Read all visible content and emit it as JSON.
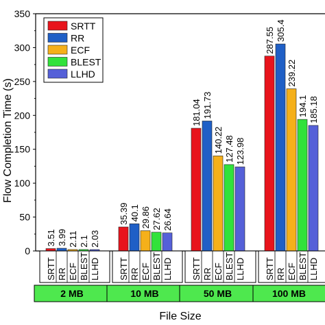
{
  "chart_data": {
    "type": "bar",
    "xlabel": "File Size",
    "ylabel": "Flow Completion Time (s)",
    "ylim": [
      0,
      350
    ],
    "yticks": [
      0,
      50,
      100,
      150,
      200,
      250,
      300,
      350
    ],
    "grid": false,
    "legend_position": "top-left",
    "categories": [
      "2 MB",
      "10 MB",
      "50 MB",
      "100 MB"
    ],
    "series": [
      {
        "name": "SRTT",
        "color": "#e8141c",
        "values": [
          3.51,
          35.39,
          181.04,
          287.55
        ],
        "labels": [
          "3.51",
          "35.39",
          "181.04",
          "287.55"
        ]
      },
      {
        "name": "RR",
        "color": "#1f5fc6",
        "values": [
          3.99,
          40.1,
          191.73,
          305.4
        ],
        "labels": [
          "3.99",
          "40.1",
          "191.73",
          "305.4"
        ]
      },
      {
        "name": "ECF",
        "color": "#f5b01a",
        "values": [
          2.11,
          29.86,
          140.22,
          239.22
        ],
        "labels": [
          "2.11",
          "29.86",
          "140.22",
          "239.22"
        ]
      },
      {
        "name": "BLEST",
        "color": "#31e23b",
        "values": [
          2.1,
          27.62,
          127.48,
          194.1
        ],
        "labels": [
          "2.1",
          "27.62",
          "127.48",
          "194.1"
        ]
      },
      {
        "name": "LLHD",
        "color": "#5560d8",
        "values": [
          2.03,
          26.64,
          123.98,
          185.18
        ],
        "labels": [
          "2.03",
          "26.64",
          "123.98",
          "185.18"
        ]
      }
    ],
    "group_band_color": "#4ee84e"
  }
}
